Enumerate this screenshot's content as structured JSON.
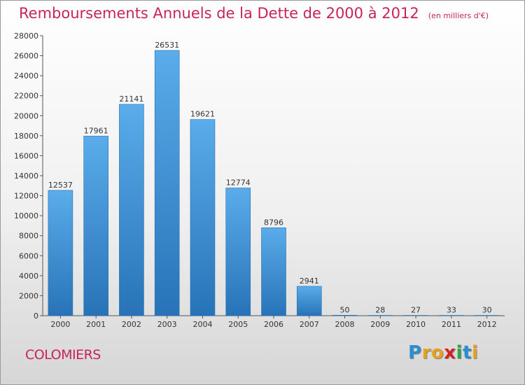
{
  "chart_data": {
    "type": "bar",
    "title": "Remboursements Annuels de la Dette de 2000 à 2012",
    "subtitle": "(en milliers d'€)",
    "categories": [
      "2000",
      "2001",
      "2002",
      "2003",
      "2004",
      "2005",
      "2006",
      "2007",
      "2008",
      "2009",
      "2010",
      "2011",
      "2012"
    ],
    "values": [
      12537,
      17961,
      21141,
      26531,
      19621,
      12774,
      8796,
      2941,
      50,
      28,
      27,
      33,
      30
    ],
    "ylim": [
      0,
      28000
    ],
    "yticks": [
      0,
      2000,
      4000,
      6000,
      8000,
      10000,
      12000,
      14000,
      16000,
      18000,
      20000,
      22000,
      24000,
      26000,
      28000
    ],
    "grid": false,
    "bar_color": "#3e90d4"
  },
  "footer": {
    "city": "COLOMIERS",
    "logo_letters": [
      {
        "ch": "P",
        "color": "#2a8fd0"
      },
      {
        "ch": "r",
        "color": "#e8a020"
      },
      {
        "ch": "o",
        "color": "#e8a020"
      },
      {
        "ch": "x",
        "color": "#d82020"
      },
      {
        "ch": "i",
        "color": "#2aa848"
      },
      {
        "ch": "t",
        "color": "#2a8fd0"
      },
      {
        "ch": "i",
        "color": "#e8a020"
      }
    ]
  }
}
